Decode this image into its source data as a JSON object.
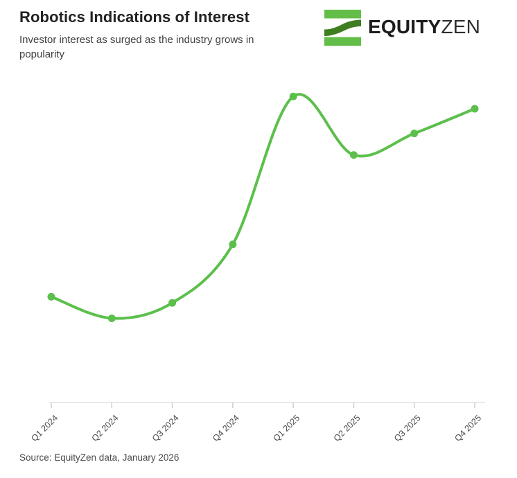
{
  "header": {
    "title": "Robotics Indications of Interest",
    "subtitle": "Investor interest as surged as the industry grows in popularity"
  },
  "logo": {
    "text_bold": "EQUITY",
    "text_light": "ZEN",
    "mark_light_green": "#63BE49",
    "mark_dark_green": "#3E7D20"
  },
  "chart_data": {
    "type": "line",
    "categories": [
      "Q1 2024",
      "Q2 2024",
      "Q3 2024",
      "Q4 2024",
      "Q1 2025",
      "Q2 2025",
      "Q3 2025",
      "Q4 2025"
    ],
    "series": [
      {
        "name": "Indications of Interest",
        "values": [
          35,
          28,
          33,
          52,
          100,
          81,
          88,
          96
        ]
      }
    ],
    "title": "Robotics Indications of Interest",
    "xlabel": "",
    "ylabel": "",
    "ylim": [
      0,
      105
    ],
    "y_axis_visible": false,
    "grid": false,
    "legend": "none",
    "line_color": "#5CBF4C",
    "axis_color": "#e9e9e9",
    "tick_color": "#cfcfcf",
    "tick_label_color": "#4c4c4c"
  },
  "footer": {
    "source": "Source: EquityZen data, January 2026"
  }
}
